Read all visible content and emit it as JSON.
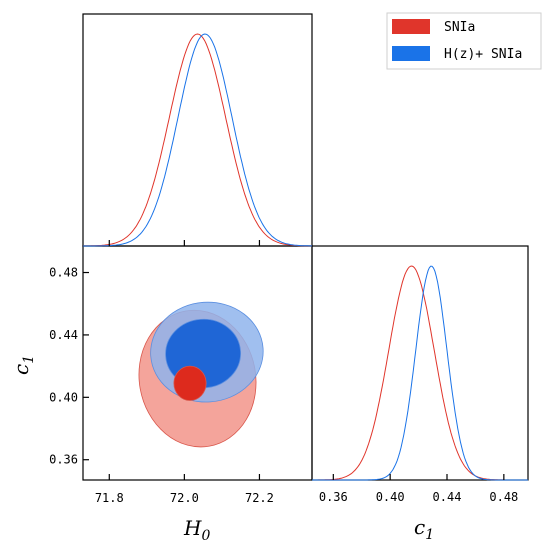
{
  "colors": {
    "snia": "#e0352b",
    "hz_snia": "#1a73e8",
    "snia_outer": "#f4a49b",
    "hz_outer": "#8fb4ec",
    "hz_inner": "#1f66d6",
    "snia_inner": "#dd2a1d"
  },
  "chart_data": {
    "type": "corner",
    "params": {
      "H0": {
        "label": "H",
        "sub": "0"
      },
      "c1": {
        "label": "c",
        "sub": "1"
      }
    },
    "legend": {
      "placement": "top-right",
      "entries": [
        "SNIa",
        "H(z)+ SNIa"
      ]
    },
    "panels": {
      "h0_marginal": {
        "xlim": [
          71.73,
          72.34
        ],
        "series": [
          {
            "name": "SNIa",
            "mean": 72.035,
            "sigma": 0.075
          },
          {
            "name": "H(z)+ SNIa",
            "mean": 72.055,
            "sigma": 0.072
          }
        ]
      },
      "c1_marginal": {
        "xlim": [
          0.345,
          0.497
        ],
        "xticks": [
          0.36,
          0.4,
          0.44,
          0.48
        ],
        "xtick_labels": [
          "0.36",
          "0.40",
          "0.44",
          "0.48"
        ],
        "series": [
          {
            "name": "SNIa",
            "mean": 0.415,
            "sigma": 0.016
          },
          {
            "name": "H(z)+ SNIa",
            "mean": 0.429,
            "sigma": 0.011
          }
        ]
      },
      "joint": {
        "xlim": [
          71.73,
          72.34
        ],
        "ylim": [
          0.347,
          0.497
        ],
        "xticks": [
          71.8,
          72.0,
          72.2
        ],
        "xtick_labels": [
          "71.8",
          "72.0",
          "72.2"
        ],
        "yticks": [
          0.36,
          0.4,
          0.44,
          0.48
        ],
        "ytick_labels": [
          "0.36",
          "0.40",
          "0.44",
          "0.48"
        ],
        "contours": [
          {
            "series": "SNIa",
            "level": "2sigma",
            "cx": 72.035,
            "cy": 0.412,
            "rx": 0.155,
            "ry": 0.044,
            "tilt": 10
          },
          {
            "series": "H(z)+ SNIa",
            "level": "2sigma",
            "cx": 72.06,
            "cy": 0.429,
            "rx": 0.15,
            "ry": 0.032,
            "tilt": 4
          },
          {
            "series": "H(z)+ SNIa",
            "level": "1sigma",
            "cx": 72.05,
            "cy": 0.428,
            "rx": 0.1,
            "ry": 0.022,
            "tilt": 4
          },
          {
            "series": "SNIa",
            "level": "1sigma",
            "cx": 72.015,
            "cy": 0.409,
            "rx": 0.043,
            "ry": 0.011,
            "tilt": 0
          }
        ]
      }
    }
  }
}
